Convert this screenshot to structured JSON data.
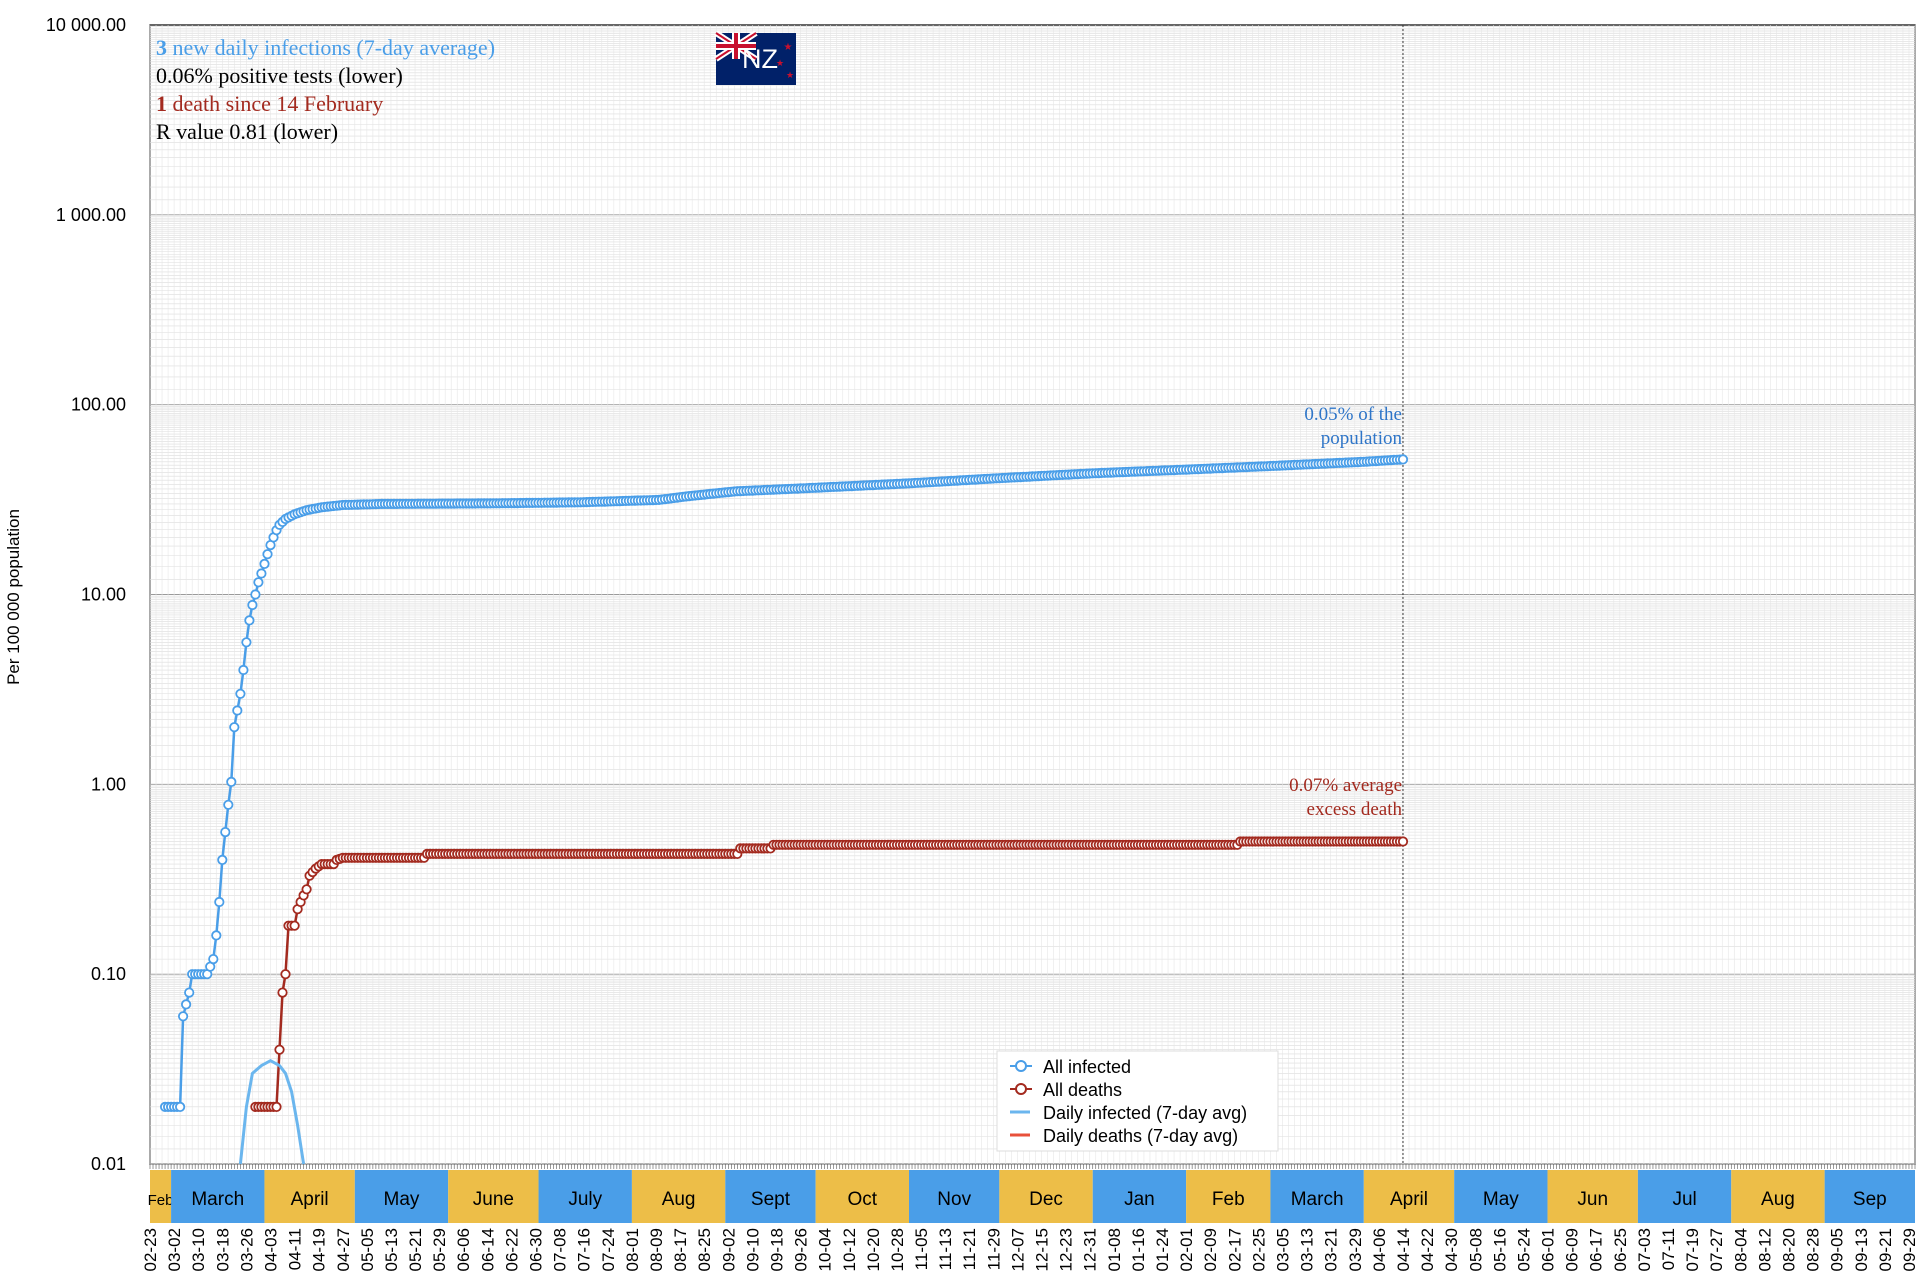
{
  "chart_data": {
    "type": "line",
    "title": "",
    "ylabel": "Per 100 000 population",
    "yscale": "log",
    "ylim": [
      0.01,
      10000
    ],
    "y_ticks": [
      "0.01",
      "0.10",
      "1.00",
      "10.00",
      "100.00",
      "1 000.00",
      "10 000.00"
    ],
    "xlim": [
      "2020-02-23",
      "2021-10-01"
    ],
    "today_marker": "2021-04-14",
    "x_ticks": [
      "02-23",
      "03-02",
      "03-10",
      "03-18",
      "03-26",
      "04-03",
      "04-11",
      "04-19",
      "04-27",
      "05-05",
      "05-13",
      "05-21",
      "05-29",
      "06-06",
      "06-14",
      "06-22",
      "06-30",
      "07-08",
      "07-16",
      "07-24",
      "08-01",
      "08-09",
      "08-17",
      "08-25",
      "09-02",
      "09-10",
      "09-18",
      "09-26",
      "10-04",
      "10-12",
      "10-20",
      "10-28",
      "11-05",
      "11-13",
      "11-21",
      "11-29",
      "12-07",
      "12-15",
      "12-23",
      "12-31",
      "01-08",
      "01-16",
      "01-24",
      "02-01",
      "02-09",
      "02-17",
      "02-25",
      "03-05",
      "03-13",
      "03-21",
      "03-29",
      "04-06",
      "04-14",
      "04-22",
      "04-30",
      "05-08",
      "05-16",
      "05-24",
      "06-01",
      "06-09",
      "06-17",
      "06-25",
      "07-03",
      "07-11",
      "07-19",
      "07-27",
      "08-04",
      "08-12",
      "08-20",
      "08-28",
      "09-05",
      "09-13",
      "09-21",
      "09-29"
    ],
    "months": [
      {
        "label": "Feb",
        "start": "2020-02-23",
        "end": "2020-03-01",
        "color": "#EDBE48"
      },
      {
        "label": "March",
        "start": "2020-03-01",
        "end": "2020-04-01",
        "color": "#4A9EE8"
      },
      {
        "label": "April",
        "start": "2020-04-01",
        "end": "2020-05-01",
        "color": "#EDBE48"
      },
      {
        "label": "May",
        "start": "2020-05-01",
        "end": "2020-06-01",
        "color": "#4A9EE8"
      },
      {
        "label": "June",
        "start": "2020-06-01",
        "end": "2020-07-01",
        "color": "#EDBE48"
      },
      {
        "label": "July",
        "start": "2020-07-01",
        "end": "2020-08-01",
        "color": "#4A9EE8"
      },
      {
        "label": "Aug",
        "start": "2020-08-01",
        "end": "2020-09-01",
        "color": "#EDBE48"
      },
      {
        "label": "Sept",
        "start": "2020-09-01",
        "end": "2020-10-01",
        "color": "#4A9EE8"
      },
      {
        "label": "Oct",
        "start": "2020-10-01",
        "end": "2020-11-01",
        "color": "#EDBE48"
      },
      {
        "label": "Nov",
        "start": "2020-11-01",
        "end": "2020-12-01",
        "color": "#4A9EE8"
      },
      {
        "label": "Dec",
        "start": "2020-12-01",
        "end": "2021-01-01",
        "color": "#EDBE48"
      },
      {
        "label": "Jan",
        "start": "2021-01-01",
        "end": "2021-02-01",
        "color": "#4A9EE8"
      },
      {
        "label": "Feb",
        "start": "2021-02-01",
        "end": "2021-03-01",
        "color": "#EDBE48"
      },
      {
        "label": "March",
        "start": "2021-03-01",
        "end": "2021-04-01",
        "color": "#4A9EE8"
      },
      {
        "label": "April",
        "start": "2021-04-01",
        "end": "2021-05-01",
        "color": "#EDBE48"
      },
      {
        "label": "May",
        "start": "2021-05-01",
        "end": "2021-06-01",
        "color": "#4A9EE8"
      },
      {
        "label": "Jun",
        "start": "2021-06-01",
        "end": "2021-07-01",
        "color": "#EDBE48"
      },
      {
        "label": "Jul",
        "start": "2021-07-01",
        "end": "2021-08-01",
        "color": "#4A9EE8"
      },
      {
        "label": "Aug",
        "start": "2021-08-01",
        "end": "2021-09-01",
        "color": "#EDBE48"
      },
      {
        "label": "Sep",
        "start": "2021-09-01",
        "end": "2021-10-01",
        "color": "#4A9EE8"
      }
    ],
    "series": [
      {
        "name": "All infected",
        "color": "#4A9EE8",
        "marker": "circle",
        "points": [
          [
            "2020-02-28",
            0.02
          ],
          [
            "2020-03-04",
            0.02
          ],
          [
            "2020-03-05",
            0.06
          ],
          [
            "2020-03-07",
            0.08
          ],
          [
            "2020-03-08",
            0.1
          ],
          [
            "2020-03-13",
            0.1
          ],
          [
            "2020-03-15",
            0.12
          ],
          [
            "2020-03-16",
            0.16
          ],
          [
            "2020-03-17",
            0.24
          ],
          [
            "2020-03-18",
            0.4
          ],
          [
            "2020-03-19",
            0.56
          ],
          [
            "2020-03-20",
            0.78
          ],
          [
            "2020-03-21",
            1.03
          ],
          [
            "2020-03-22",
            2.0
          ],
          [
            "2020-03-24",
            3.0
          ],
          [
            "2020-03-25",
            4.0
          ],
          [
            "2020-03-26",
            5.6
          ],
          [
            "2020-03-27",
            7.3
          ],
          [
            "2020-03-28",
            8.8
          ],
          [
            "2020-03-29",
            10.0
          ],
          [
            "2020-03-30",
            11.6
          ],
          [
            "2020-03-31",
            12.9
          ],
          [
            "2020-04-01",
            14.5
          ],
          [
            "2020-04-02",
            16.3
          ],
          [
            "2020-04-03",
            18.2
          ],
          [
            "2020-04-04",
            20.0
          ],
          [
            "2020-04-05",
            21.8
          ],
          [
            "2020-04-06",
            23.3
          ],
          [
            "2020-04-08",
            25.0
          ],
          [
            "2020-04-11",
            26.5
          ],
          [
            "2020-04-15",
            27.8
          ],
          [
            "2020-04-20",
            28.8
          ],
          [
            "2020-04-27",
            29.6
          ],
          [
            "2020-05-10",
            30.0
          ],
          [
            "2020-06-15",
            30.2
          ],
          [
            "2020-07-15",
            30.6
          ],
          [
            "2020-08-10",
            31.5
          ],
          [
            "2020-08-20",
            33.0
          ],
          [
            "2020-09-05",
            35.0
          ],
          [
            "2020-10-01",
            36.5
          ],
          [
            "2020-11-01",
            38.5
          ],
          [
            "2020-12-01",
            41.0
          ],
          [
            "2021-01-01",
            43.5
          ],
          [
            "2021-02-01",
            45.5
          ],
          [
            "2021-03-01",
            47.5
          ],
          [
            "2021-04-01",
            50.0
          ],
          [
            "2021-04-14",
            51.5
          ]
        ]
      },
      {
        "name": "All deaths",
        "color": "#A32A1F",
        "marker": "circle",
        "points": [
          [
            "2020-03-29",
            0.02
          ],
          [
            "2020-04-05",
            0.02
          ],
          [
            "2020-04-06",
            0.04
          ],
          [
            "2020-04-07",
            0.08
          ],
          [
            "2020-04-08",
            0.1
          ],
          [
            "2020-04-09",
            0.18
          ],
          [
            "2020-04-11",
            0.18
          ],
          [
            "2020-04-12",
            0.22
          ],
          [
            "2020-04-13",
            0.24
          ],
          [
            "2020-04-14",
            0.26
          ],
          [
            "2020-04-15",
            0.28
          ],
          [
            "2020-04-16",
            0.33
          ],
          [
            "2020-04-18",
            0.36
          ],
          [
            "2020-04-20",
            0.38
          ],
          [
            "2020-04-24",
            0.38
          ],
          [
            "2020-04-25",
            0.4
          ],
          [
            "2020-04-27",
            0.41
          ],
          [
            "2020-05-24",
            0.41
          ],
          [
            "2020-05-25",
            0.43
          ],
          [
            "2020-09-05",
            0.43
          ],
          [
            "2020-09-06",
            0.46
          ],
          [
            "2020-09-16",
            0.46
          ],
          [
            "2020-09-17",
            0.48
          ],
          [
            "2021-02-18",
            0.48
          ],
          [
            "2021-02-19",
            0.5
          ],
          [
            "2021-04-14",
            0.5
          ]
        ]
      },
      {
        "name": "Daily infected (7-day avg)",
        "color": "#6BB6EE",
        "marker": "none",
        "points": [
          [
            "2020-03-24",
            0.01
          ],
          [
            "2020-03-26",
            0.02
          ],
          [
            "2020-03-28",
            0.03
          ],
          [
            "2020-03-31",
            0.033
          ],
          [
            "2020-04-03",
            0.035
          ],
          [
            "2020-04-06",
            0.033
          ],
          [
            "2020-04-08",
            0.03
          ],
          [
            "2020-04-10",
            0.024
          ],
          [
            "2020-04-12",
            0.016
          ],
          [
            "2020-04-14",
            0.01
          ]
        ]
      },
      {
        "name": "Daily deaths (7-day avg)",
        "color": "#E8503A",
        "marker": "none",
        "points": []
      }
    ],
    "annotations": {
      "infected_end": [
        "0.05% of the",
        "population"
      ],
      "deaths_end": [
        "0.07% average",
        "excess death"
      ]
    },
    "stats": {
      "new_infections_num": "3",
      "new_infections_text": " new daily infections (7-day average)",
      "positive_tests": "0.06% positive tests (lower)",
      "deaths_num": "1",
      "deaths_text": " death since 14 February",
      "r_value": "R value 0.81 (lower)"
    },
    "flag_text": "NZ",
    "legend_position": "bottom-center"
  },
  "colors": {
    "infected": "#4A9EE8",
    "deaths": "#A32A1F",
    "month_gold": "#EDBE48",
    "month_blue": "#4A9EE8",
    "grid": "#CCCCCC"
  }
}
